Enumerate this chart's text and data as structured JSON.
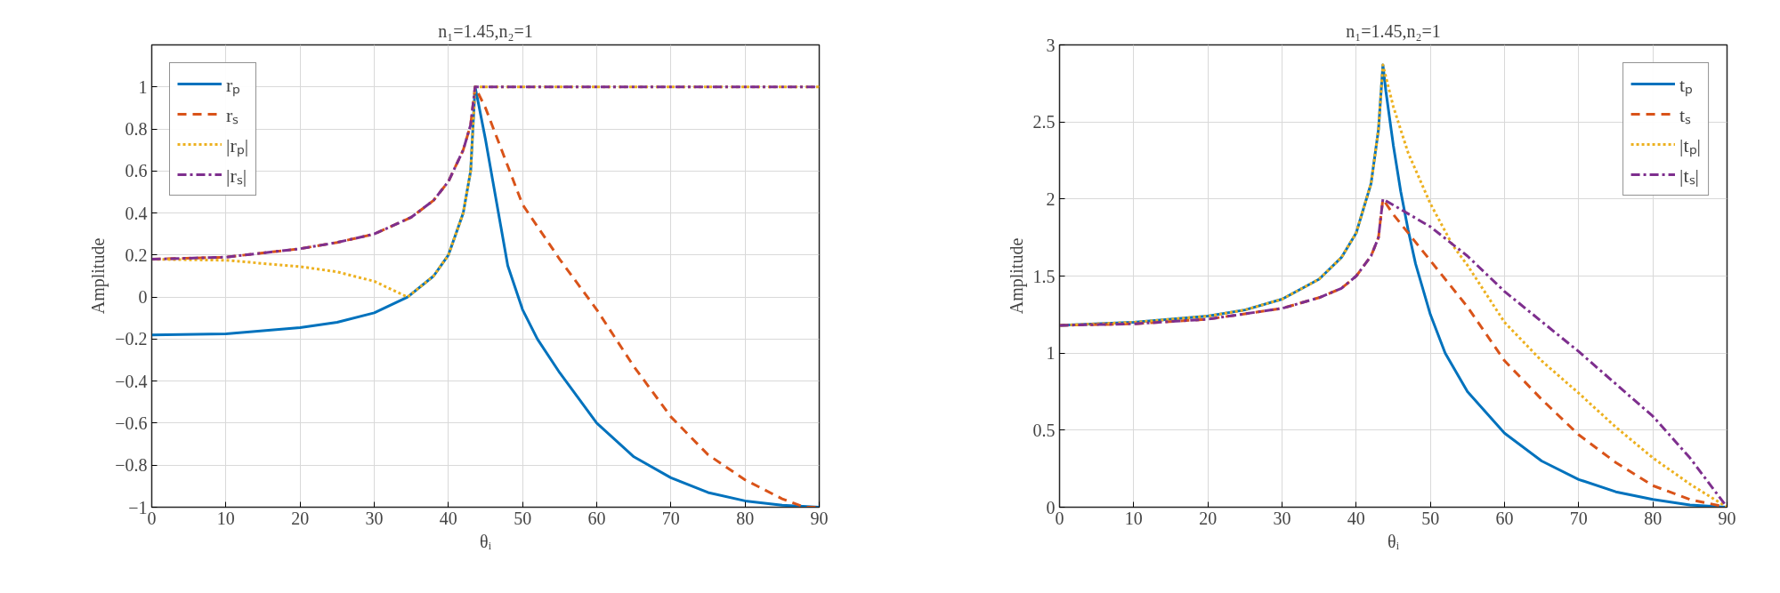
{
  "chart_data": [
    {
      "type": "line",
      "title": "n₁=1.45,n₂=1",
      "xlabel": "θᵢ",
      "ylabel": "Amplitude",
      "xlim": [
        0,
        90
      ],
      "ylim": [
        -1,
        1.2
      ],
      "xticks": [
        0,
        10,
        20,
        30,
        40,
        50,
        60,
        70,
        80,
        90
      ],
      "yticks": [
        -1,
        -0.8,
        -0.6,
        -0.4,
        -0.2,
        0,
        0.2,
        0.4,
        0.6,
        0.8,
        1
      ],
      "grid": true,
      "legend": "top left",
      "series": [
        {
          "name": "rₚ",
          "color": "#0072bd",
          "line_style": "solid",
          "x": [
            0,
            10,
            20,
            25,
            30,
            34.5,
            38,
            40,
            42,
            43,
            43.6,
            44,
            45,
            46,
            47,
            48,
            50,
            52,
            55,
            60,
            65,
            70,
            75,
            80,
            85,
            90
          ],
          "values": [
            -0.18,
            -0.175,
            -0.145,
            -0.12,
            -0.075,
            0,
            0.1,
            0.2,
            0.4,
            0.6,
            1,
            0.93,
            0.75,
            0.55,
            0.35,
            0.15,
            -0.06,
            -0.2,
            -0.36,
            -0.6,
            -0.76,
            -0.86,
            -0.93,
            -0.97,
            -0.99,
            -1
          ]
        },
        {
          "name": "rₛ",
          "color": "#d95319",
          "line_style": "dashed",
          "x": [
            0,
            10,
            20,
            25,
            30,
            35,
            38,
            40,
            42,
            43,
            43.6,
            45,
            50,
            55,
            60,
            65,
            70,
            75,
            80,
            85,
            88,
            90
          ],
          "values": [
            0.18,
            0.19,
            0.23,
            0.26,
            0.3,
            0.38,
            0.46,
            0.55,
            0.7,
            0.82,
            1,
            0.9,
            0.44,
            0.18,
            -0.06,
            -0.33,
            -0.57,
            -0.75,
            -0.87,
            -0.96,
            -1,
            -1
          ]
        },
        {
          "name": "|rₚ|",
          "color": "#edb120",
          "line_style": "dotted",
          "x": [
            0,
            10,
            20,
            25,
            30,
            34.5,
            38,
            40,
            42,
            43,
            43.6,
            50,
            60,
            70,
            80,
            90
          ],
          "values": [
            0.18,
            0.175,
            0.145,
            0.12,
            0.075,
            0,
            0.1,
            0.2,
            0.4,
            0.6,
            1,
            1,
            1,
            1,
            1,
            1
          ]
        },
        {
          "name": "|rₛ|",
          "color": "#7e2f8e",
          "line_style": "dashdot",
          "x": [
            0,
            10,
            20,
            25,
            30,
            35,
            38,
            40,
            42,
            43,
            43.6,
            50,
            60,
            70,
            80,
            90
          ],
          "values": [
            0.18,
            0.19,
            0.23,
            0.26,
            0.3,
            0.38,
            0.46,
            0.55,
            0.7,
            0.82,
            1,
            1,
            1,
            1,
            1,
            1
          ]
        }
      ]
    },
    {
      "type": "line",
      "title": "n₁=1.45,n₂=1",
      "xlabel": "θᵢ",
      "ylabel": "Amplitude",
      "xlim": [
        0,
        90
      ],
      "ylim": [
        0,
        3
      ],
      "xticks": [
        0,
        10,
        20,
        30,
        40,
        50,
        60,
        70,
        80,
        90
      ],
      "yticks": [
        0,
        0.5,
        1,
        1.5,
        2,
        2.5,
        3
      ],
      "grid": true,
      "legend": "top right",
      "series": [
        {
          "name": "tₚ",
          "color": "#0072bd",
          "line_style": "solid",
          "x": [
            0,
            10,
            20,
            25,
            30,
            35,
            38,
            40,
            42,
            43,
            43.6,
            44,
            45,
            46,
            47,
            48,
            50,
            52,
            55,
            60,
            65,
            70,
            75,
            80,
            85,
            90
          ],
          "values": [
            1.18,
            1.2,
            1.24,
            1.28,
            1.35,
            1.48,
            1.62,
            1.78,
            2.1,
            2.45,
            2.87,
            2.7,
            2.35,
            2.05,
            1.8,
            1.58,
            1.25,
            1.0,
            0.75,
            0.48,
            0.3,
            0.18,
            0.1,
            0.05,
            0.015,
            0
          ]
        },
        {
          "name": "tₛ",
          "color": "#d95319",
          "line_style": "dashed",
          "x": [
            0,
            10,
            20,
            30,
            35,
            38,
            40,
            42,
            43,
            43.6,
            45,
            50,
            55,
            60,
            65,
            70,
            75,
            80,
            85,
            90
          ],
          "values": [
            1.18,
            1.19,
            1.22,
            1.29,
            1.36,
            1.42,
            1.5,
            1.63,
            1.75,
            2.0,
            1.9,
            1.6,
            1.3,
            0.95,
            0.7,
            0.47,
            0.29,
            0.14,
            0.05,
            0
          ]
        },
        {
          "name": "|tₚ|",
          "color": "#edb120",
          "line_style": "dotted",
          "x": [
            0,
            10,
            20,
            25,
            30,
            35,
            38,
            40,
            42,
            43,
            43.6,
            45,
            47,
            50,
            53,
            55,
            60,
            65,
            70,
            75,
            80,
            85,
            90
          ],
          "values": [
            1.18,
            1.2,
            1.24,
            1.28,
            1.35,
            1.48,
            1.62,
            1.78,
            2.1,
            2.45,
            2.87,
            2.6,
            2.3,
            1.97,
            1.7,
            1.57,
            1.2,
            0.95,
            0.74,
            0.52,
            0.32,
            0.15,
            0
          ]
        },
        {
          "name": "|tₛ|",
          "color": "#7e2f8e",
          "line_style": "dashdot",
          "x": [
            0,
            10,
            20,
            30,
            35,
            38,
            40,
            42,
            43,
            43.6,
            50,
            55,
            60,
            70,
            80,
            85,
            90
          ],
          "values": [
            1.18,
            1.19,
            1.22,
            1.29,
            1.36,
            1.42,
            1.5,
            1.63,
            1.75,
            2.0,
            1.82,
            1.63,
            1.4,
            1.01,
            0.59,
            0.32,
            0
          ]
        }
      ]
    }
  ]
}
